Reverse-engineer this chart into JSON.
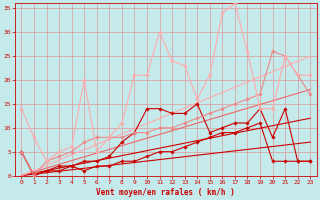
{
  "title": "",
  "xlabel": "Vent moyen/en rafales ( km/h )",
  "xlim": [
    -0.5,
    23.5
  ],
  "ylim": [
    0,
    36
  ],
  "yticks": [
    0,
    5,
    10,
    15,
    20,
    25,
    30,
    35
  ],
  "xticks": [
    0,
    1,
    2,
    3,
    4,
    5,
    6,
    7,
    8,
    9,
    10,
    11,
    12,
    13,
    14,
    15,
    16,
    17,
    18,
    19,
    20,
    21,
    22,
    23
  ],
  "background_color": "#c5eaec",
  "grid_color": "#dd9999",
  "lines": [
    {
      "x": [
        0,
        23
      ],
      "y": [
        0,
        7
      ],
      "color": "#cc0000",
      "linewidth": 0.8,
      "marker": null,
      "markersize": 0,
      "zorder": 2
    },
    {
      "x": [
        0,
        23
      ],
      "y": [
        0,
        12
      ],
      "color": "#cc0000",
      "linewidth": 0.8,
      "marker": null,
      "markersize": 0,
      "zorder": 2
    },
    {
      "x": [
        0,
        23
      ],
      "y": [
        0,
        18
      ],
      "color": "#ee6666",
      "linewidth": 0.8,
      "marker": null,
      "markersize": 0,
      "zorder": 2
    },
    {
      "x": [
        0,
        23
      ],
      "y": [
        0,
        25
      ],
      "color": "#ffaaaa",
      "linewidth": 0.8,
      "marker": null,
      "markersize": 0,
      "zorder": 2
    },
    {
      "x": [
        0,
        1,
        2,
        3,
        4,
        5,
        6,
        7,
        8,
        9,
        10,
        11,
        12,
        13,
        14,
        15,
        16,
        17,
        18,
        19,
        20,
        21,
        22,
        23
      ],
      "y": [
        5,
        0,
        1,
        1,
        2,
        1,
        2,
        2,
        3,
        3,
        4,
        5,
        5,
        6,
        7,
        8,
        9,
        9,
        10,
        11,
        3,
        3,
        3,
        3
      ],
      "color": "#cc0000",
      "linewidth": 0.8,
      "marker": "D",
      "markersize": 1.8,
      "zorder": 3
    },
    {
      "x": [
        0,
        1,
        2,
        3,
        4,
        5,
        6,
        7,
        8,
        9,
        10,
        11,
        12,
        13,
        14,
        15,
        16,
        17,
        18,
        19,
        20,
        21,
        22,
        23
      ],
      "y": [
        5,
        0,
        1,
        2,
        2,
        3,
        3,
        4,
        7,
        9,
        14,
        14,
        13,
        13,
        15,
        9,
        10,
        11,
        11,
        14,
        8,
        14,
        3,
        3
      ],
      "color": "#cc0000",
      "linewidth": 0.8,
      "marker": "D",
      "markersize": 1.8,
      "zorder": 3
    },
    {
      "x": [
        0,
        1,
        2,
        3,
        4,
        5,
        6,
        7,
        8,
        9,
        10,
        11,
        12,
        13,
        14,
        15,
        16,
        17,
        18,
        19,
        20,
        21,
        22,
        23
      ],
      "y": [
        5,
        0,
        3,
        4,
        5,
        7,
        8,
        8,
        8,
        9,
        9,
        10,
        10,
        11,
        12,
        13,
        14,
        15,
        16,
        17,
        26,
        25,
        21,
        17
      ],
      "color": "#ee8888",
      "linewidth": 0.8,
      "marker": "D",
      "markersize": 1.8,
      "zorder": 3
    },
    {
      "x": [
        0,
        1,
        2,
        3,
        4,
        5,
        6,
        7,
        8,
        9,
        10,
        11,
        12,
        13,
        14,
        15,
        16,
        17,
        18,
        19,
        20,
        21,
        22,
        23
      ],
      "y": [
        14,
        8,
        3,
        5,
        6,
        20,
        5,
        8,
        11,
        21,
        21,
        30,
        24,
        23,
        16,
        21,
        34,
        36,
        26,
        14,
        14,
        25,
        21,
        21
      ],
      "color": "#ffaaaa",
      "linewidth": 0.8,
      "marker": "D",
      "markersize": 1.8,
      "zorder": 3
    }
  ]
}
